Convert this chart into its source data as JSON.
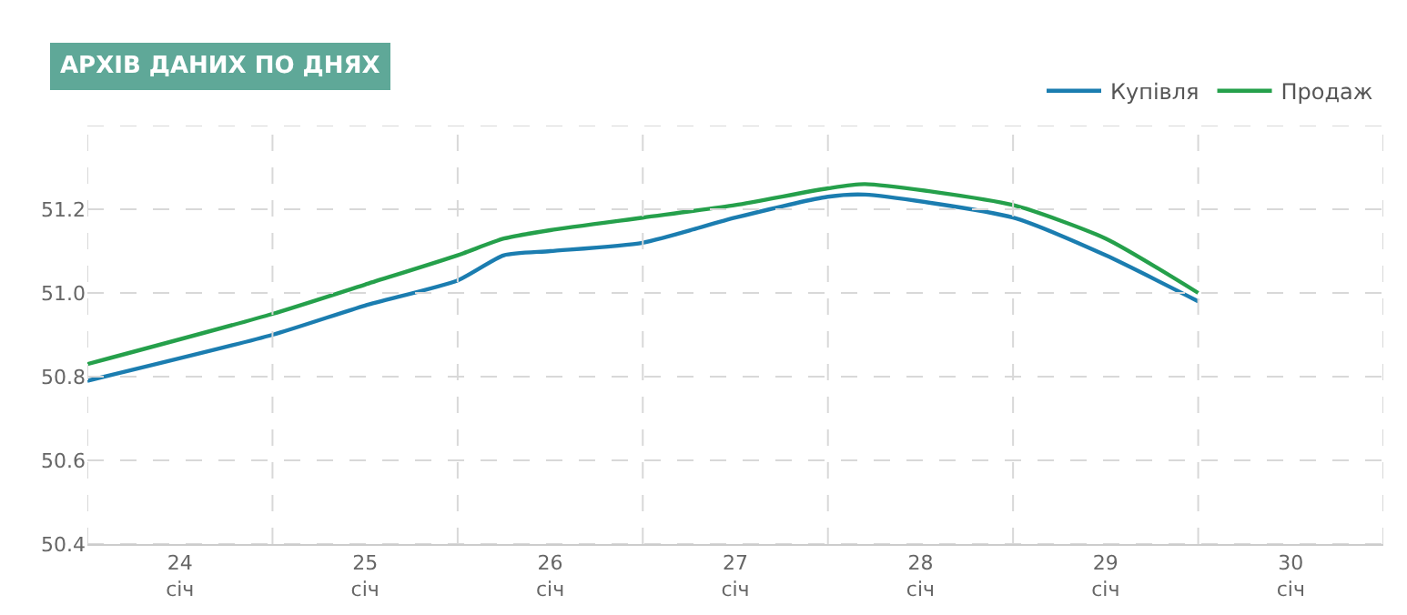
{
  "chart_data": {
    "type": "line",
    "title": "АРХІВ ДАНИХ ПО ДНЯХ",
    "x": [
      23.5,
      24.5,
      25.0,
      25.5,
      25.75,
      26.0,
      26.5,
      27.0,
      27.5,
      27.7,
      28.5,
      29.0,
      29.5
    ],
    "series": [
      {
        "name": "Купівля",
        "color": "#1b7db0",
        "values": [
          50.79,
          50.9,
          50.97,
          51.03,
          51.09,
          51.1,
          51.12,
          51.18,
          51.23,
          51.235,
          51.18,
          51.09,
          50.98
        ]
      },
      {
        "name": "Продаж",
        "color": "#25a04b",
        "values": [
          50.83,
          50.95,
          51.02,
          51.09,
          51.13,
          51.15,
          51.18,
          51.21,
          51.25,
          51.26,
          51.21,
          51.13,
          51.0
        ]
      }
    ],
    "xlim": [
      23.5,
      30.5
    ],
    "xticks": [
      {
        "value": 23.5,
        "label": null
      },
      {
        "value": 24,
        "label": "24\nсіч"
      },
      {
        "value": 24.5,
        "label": null
      },
      {
        "value": 25,
        "label": "25\nсіч"
      },
      {
        "value": 25.5,
        "label": null
      },
      {
        "value": 26,
        "label": "26\nсіч"
      },
      {
        "value": 26.5,
        "label": null
      },
      {
        "value": 27,
        "label": "27\nсіч"
      },
      {
        "value": 27.5,
        "label": null
      },
      {
        "value": 28,
        "label": "28\nсіч"
      },
      {
        "value": 28.5,
        "label": null
      },
      {
        "value": 29,
        "label": "29\nсіч"
      },
      {
        "value": 29.5,
        "label": null
      },
      {
        "value": 30,
        "label": "30\nсіч"
      },
      {
        "value": 30.5,
        "label": null
      }
    ],
    "ylim": [
      50.4,
      51.4
    ],
    "yticks": [
      50.4,
      50.6,
      {
        "value": 50.8,
        "label": "50.8"
      },
      {
        "value": 51.0,
        "label": "51.0"
      },
      51.2,
      {
        "value": 51.4,
        "label": null
      }
    ],
    "grid": true,
    "legend": "top right",
    "marker": "none",
    "line_style": "solid"
  }
}
